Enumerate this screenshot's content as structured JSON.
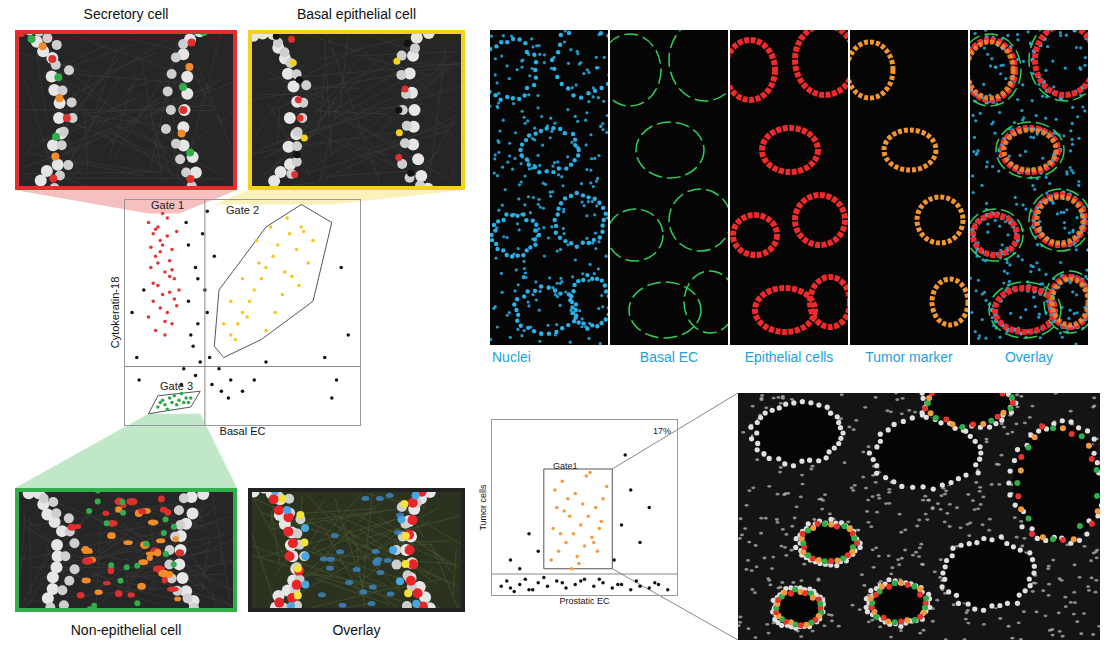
{
  "image_panels": {
    "zoom_cells": [
      {
        "label": "Secretory cell",
        "color": "#e0302e",
        "gate": "Gate 1"
      },
      {
        "label": "Basal epithelial cell",
        "color": "#f2d21b",
        "gate": "Gate 2"
      },
      {
        "label": "Non-epithelial cell",
        "color": "#2fae4a",
        "gate": "Gate 3"
      }
    ],
    "overlay_label": "Overlay",
    "channels": [
      {
        "label": "Nuclei",
        "color": "#27b3ea"
      },
      {
        "label": "Basal EC",
        "color": "#2fd05a"
      },
      {
        "label": "Epithelial cells",
        "color": "#ee2a2a"
      },
      {
        "label": "Tumor marker",
        "color": "#f5952e"
      },
      {
        "label": "Overlay",
        "color": "#27b3ea"
      }
    ],
    "channel_label_color": "#1ea0dc"
  },
  "chart_data": [
    {
      "type": "scatter",
      "x_label": "Basal EC",
      "y_label": "Cytokeratin-18",
      "xlim": [
        0,
        100
      ],
      "ylim": [
        0,
        100
      ],
      "tick_labels": false,
      "grid": false,
      "thresholds": {
        "x": 34,
        "y": 26
      },
      "series": [
        {
          "name": "Gate 1",
          "color": "#e8342c",
          "x": [
            10,
            12,
            14,
            16,
            18,
            20,
            22,
            11,
            13,
            15,
            17,
            19,
            21,
            23,
            12,
            14,
            16,
            18,
            20,
            10,
            13,
            15,
            17,
            19,
            21,
            14,
            16,
            18,
            12,
            20,
            15,
            17,
            13,
            19,
            11,
            22
          ],
          "y": [
            90,
            85,
            88,
            80,
            92,
            78,
            86,
            70,
            75,
            82,
            68,
            73,
            65,
            60,
            55,
            62,
            58,
            50,
            45,
            48,
            42,
            52,
            40,
            66,
            56,
            72,
            94,
            84,
            63,
            69,
            77,
            46,
            87,
            59,
            79,
            53
          ]
        },
        {
          "name": "Gate 2",
          "color": "#f5c518",
          "polygon": {
            "x": [
              38,
              40,
              60,
              75,
              88,
              80,
              58,
              42,
              38
            ],
            "y": [
              35,
              60,
              88,
              98,
              90,
              55,
              38,
              30,
              35
            ]
          },
          "x": [
            45,
            50,
            55,
            60,
            65,
            70,
            75,
            80,
            48,
            53,
            58,
            63,
            68,
            73,
            78,
            45,
            52,
            60,
            67,
            74,
            50,
            57,
            64,
            71,
            56,
            62,
            69,
            76,
            42,
            47
          ],
          "y": [
            40,
            50,
            60,
            70,
            80,
            85,
            88,
            82,
            45,
            55,
            65,
            75,
            68,
            78,
            72,
            55,
            48,
            42,
            58,
            62,
            65,
            72,
            50,
            66,
            82,
            88,
            92,
            86,
            45,
            38
          ]
        },
        {
          "name": "Gate 3",
          "color": "#2aa84a",
          "polygon": {
            "x": [
              10,
              28,
              32,
              14,
              10
            ],
            "y": [
              5,
              8,
              15,
              13,
              5
            ]
          },
          "x": [
            14,
            17,
            20,
            23,
            26,
            16,
            19,
            22,
            25,
            28,
            18,
            21,
            24,
            15,
            27
          ],
          "y": [
            8,
            9,
            10,
            11,
            12,
            11,
            12,
            9,
            10,
            12,
            7,
            13,
            14,
            10,
            10
          ]
        },
        {
          "color": "#111111",
          "x": [
            5,
            8,
            30,
            35,
            28,
            33,
            26,
            40,
            45,
            92,
            95,
            30,
            36,
            25,
            50,
            55,
            34,
            38,
            27,
            31,
            90,
            85,
            44,
            6,
            3,
            29,
            32,
            37,
            41,
            24,
            60,
            88,
            35,
            27,
            31
          ],
          "y": [
            30,
            60,
            70,
            50,
            40,
            85,
            90,
            25,
            20,
            70,
            40,
            22,
            30,
            25,
            15,
            20,
            60,
            75,
            55,
            45,
            20,
            30,
            12,
            20,
            50,
            35,
            28,
            18,
            15,
            18,
            28,
            12,
            95,
            80,
            65
          ]
        }
      ]
    },
    {
      "type": "scatter",
      "x_label": "Prostatic EC",
      "y_label": "Tumor cells",
      "xlim": [
        0,
        100
      ],
      "ylim": [
        0,
        100
      ],
      "tick_labels": false,
      "grid": false,
      "thresholds": {
        "y": 12
      },
      "annotations": [
        {
          "text": "17%"
        }
      ],
      "series": [
        {
          "name": "Gate1",
          "color": "#f59a3c",
          "polygon": {
            "x": [
              28,
              65,
              65,
              28,
              28
            ],
            "y": [
              15,
              15,
              72,
              72,
              15
            ]
          },
          "x": [
            32,
            36,
            40,
            44,
            48,
            52,
            56,
            60,
            34,
            38,
            42,
            46,
            50,
            54,
            58,
            62,
            35,
            41,
            47,
            53,
            59,
            33,
            39,
            45,
            51,
            57,
            37,
            43,
            49,
            55
          ],
          "y": [
            20,
            25,
            30,
            35,
            40,
            45,
            50,
            55,
            60,
            65,
            45,
            22,
            28,
            33,
            38,
            62,
            50,
            55,
            18,
            70,
            42,
            38,
            48,
            58,
            68,
            25,
            35,
            15,
            52,
            30
          ]
        },
        {
          "color": "#111111",
          "x": [
            5,
            10,
            15,
            20,
            25,
            30,
            35,
            40,
            45,
            50,
            55,
            60,
            65,
            70,
            75,
            80,
            85,
            90,
            95,
            8,
            18,
            28,
            38,
            48,
            58,
            68,
            78,
            88,
            12,
            22,
            70,
            75,
            80,
            20,
            25,
            66,
            72,
            15,
            85,
            10
          ],
          "y": [
            5,
            4,
            6,
            3,
            7,
            5,
            8,
            4,
            6,
            9,
            5,
            7,
            4,
            6,
            3,
            5,
            4,
            6,
            3,
            8,
            9,
            10,
            7,
            8,
            9,
            6,
            8,
            7,
            2,
            3,
            40,
            60,
            30,
            35,
            25,
            20,
            80,
            15,
            50,
            20
          ]
        }
      ]
    }
  ]
}
